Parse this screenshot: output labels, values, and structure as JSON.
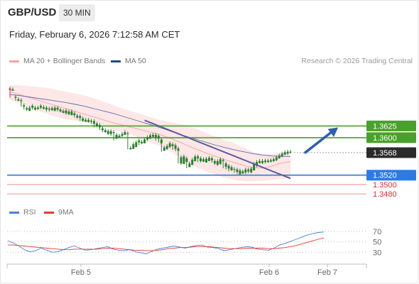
{
  "header": {
    "pair": "GBP/USD",
    "timeframe": "30 MIN",
    "datetime": "Friday, February 6, 2026 7:12:58 AM CET"
  },
  "legend": {
    "ma20_label": "MA 20 + Bollinger Bands",
    "ma50_label": "MA 50",
    "credit": "Research © 2026 Trading Central",
    "rsi_label": "RSI",
    "rsi_ma_label": "9MA"
  },
  "colors": {
    "up": "#2e7d32",
    "down": "#d32f2f",
    "bollinger_fill": "#fde3e3",
    "ma20": "#f4a3a3",
    "ma50": "#5a6ea8",
    "trendline": "#5c5a9e",
    "resistance": "#4aa02c",
    "pivot": "#2c7be5",
    "support": "#f08a8a",
    "arrow": "#2f5fa8",
    "rsi": "#4f7ed6",
    "rsi_ma": "#e53935"
  },
  "chart_data": [
    {
      "type": "candlestick",
      "title": "GBP/USD 30 MIN",
      "ylim": [
        1.3462,
        1.3715
      ],
      "x_ticks": [
        "Feb 5",
        "Feb 6",
        "Feb 7"
      ],
      "price_levels": [
        {
          "label": "1.3625",
          "value": 1.3625,
          "kind": "resistance"
        },
        {
          "label": "1.3600",
          "value": 1.36,
          "kind": "resistance"
        },
        {
          "label": "1.3568",
          "value": 1.3568,
          "kind": "last"
        },
        {
          "label": "1.3520",
          "value": 1.352,
          "kind": "pivot"
        },
        {
          "label": "1.3500",
          "value": 1.35,
          "kind": "support"
        },
        {
          "label": "1.3480",
          "value": 1.348,
          "kind": "support"
        }
      ],
      "candles": [
        [
          1.3705,
          1.3702,
          1.3685
        ],
        [
          1.37,
          1.3703,
          1.37
        ],
        [
          1.3685,
          1.3687,
          1.3679
        ],
        [
          1.3679,
          1.3682,
          1.3678
        ],
        [
          1.3678,
          1.368,
          1.3666
        ],
        [
          1.3666,
          1.3669,
          1.366
        ],
        [
          1.366,
          1.3663,
          1.3657
        ],
        [
          1.3657,
          1.3664,
          1.366
        ],
        [
          1.3664,
          1.3668,
          1.366
        ],
        [
          1.366,
          1.3664,
          1.3658
        ],
        [
          1.3661,
          1.3664,
          1.366
        ],
        [
          1.3664,
          1.3668,
          1.3661
        ],
        [
          1.3662,
          1.3665,
          1.366
        ],
        [
          1.366,
          1.3664,
          1.3656
        ],
        [
          1.366,
          1.3662,
          1.3656
        ],
        [
          1.3659,
          1.3663,
          1.3657
        ],
        [
          1.3657,
          1.3664,
          1.366
        ],
        [
          1.366,
          1.3664,
          1.3656
        ],
        [
          1.3656,
          1.366,
          1.3654
        ],
        [
          1.3653,
          1.3657,
          1.3652
        ],
        [
          1.3652,
          1.3658,
          1.3649
        ],
        [
          1.365,
          1.3656,
          1.3648
        ],
        [
          1.3648,
          1.3656,
          1.3648
        ],
        [
          1.3648,
          1.3652,
          1.3643
        ],
        [
          1.3643,
          1.3647,
          1.364
        ],
        [
          1.3642,
          1.3646,
          1.3636
        ],
        [
          1.3636,
          1.3641,
          1.3634
        ],
        [
          1.3634,
          1.3638,
          1.3634
        ],
        [
          1.3634,
          1.3638,
          1.3632
        ],
        [
          1.3634,
          1.3636,
          1.363
        ],
        [
          1.363,
          1.3635,
          1.3622
        ],
        [
          1.3625,
          1.363,
          1.3622
        ],
        [
          1.3622,
          1.3627,
          1.3616
        ],
        [
          1.3616,
          1.362,
          1.3612
        ],
        [
          1.3612,
          1.3616,
          1.361
        ],
        [
          1.3608,
          1.3614,
          1.3606
        ],
        [
          1.3608,
          1.3614,
          1.3604
        ],
        [
          1.361,
          1.3612,
          1.3594
        ],
        [
          1.3598,
          1.3606,
          1.3597
        ],
        [
          1.36,
          1.3604,
          1.3602
        ],
        [
          1.3604,
          1.3608,
          1.36
        ],
        [
          1.3606,
          1.3612,
          1.3605
        ],
        [
          1.3608,
          1.3609,
          1.3575
        ],
        [
          1.3575,
          1.3578,
          1.3576
        ],
        [
          1.3576,
          1.3586,
          1.3578
        ],
        [
          1.358,
          1.359,
          1.3582
        ],
        [
          1.359,
          1.3594,
          1.3584
        ],
        [
          1.3588,
          1.3591,
          1.3586
        ],
        [
          1.3588,
          1.3596,
          1.359
        ],
        [
          1.3596,
          1.3601,
          1.3593
        ],
        [
          1.3598,
          1.3605,
          1.3597
        ],
        [
          1.3602,
          1.3606,
          1.36
        ],
        [
          1.36,
          1.3606,
          1.3594
        ],
        [
          1.3598,
          1.3604,
          1.359
        ],
        [
          1.3588,
          1.3596,
          1.357
        ],
        [
          1.3572,
          1.3579,
          1.3573
        ],
        [
          1.3576,
          1.3582,
          1.3574
        ],
        [
          1.358,
          1.3588,
          1.3578
        ],
        [
          1.3582,
          1.3586,
          1.3574
        ],
        [
          1.3576,
          1.3584,
          1.3571
        ],
        [
          1.3572,
          1.3577,
          1.3545
        ],
        [
          1.3545,
          1.3558,
          1.3542
        ],
        [
          1.3544,
          1.356,
          1.3546
        ],
        [
          1.3548,
          1.3556,
          1.3535
        ],
        [
          1.3537,
          1.3545,
          1.3538
        ],
        [
          1.3542,
          1.3553,
          1.3542
        ],
        [
          1.355,
          1.356,
          1.3549
        ],
        [
          1.3556,
          1.356,
          1.3548
        ],
        [
          1.355,
          1.3556,
          1.3547
        ],
        [
          1.3549,
          1.3554,
          1.3548
        ],
        [
          1.3547,
          1.3555,
          1.3548
        ],
        [
          1.355,
          1.3557,
          1.355
        ],
        [
          1.3552,
          1.3556,
          1.3547
        ],
        [
          1.3545,
          1.355,
          1.3542
        ],
        [
          1.3542,
          1.355,
          1.354
        ],
        [
          1.3544,
          1.3554,
          1.3542
        ],
        [
          1.355,
          1.3552,
          1.3535
        ],
        [
          1.3538,
          1.3545,
          1.3532
        ],
        [
          1.3534,
          1.354,
          1.3528
        ],
        [
          1.353,
          1.3537,
          1.3531
        ],
        [
          1.3532,
          1.3533,
          1.3525
        ],
        [
          1.3527,
          1.3532,
          1.3522
        ],
        [
          1.3522,
          1.353,
          1.352
        ],
        [
          1.3524,
          1.3528,
          1.3522
        ],
        [
          1.3526,
          1.3532,
          1.3522
        ],
        [
          1.3528,
          1.3532,
          1.3524
        ],
        [
          1.3526,
          1.3534,
          1.3524
        ],
        [
          1.353,
          1.3544,
          1.3532
        ],
        [
          1.354,
          1.3548,
          1.3537
        ],
        [
          1.3546,
          1.355,
          1.3545
        ],
        [
          1.3546,
          1.355,
          1.3544
        ],
        [
          1.3548,
          1.3551,
          1.3545
        ],
        [
          1.3548,
          1.3551,
          1.3546
        ],
        [
          1.3549,
          1.3552,
          1.3547
        ],
        [
          1.355,
          1.3554,
          1.3548
        ],
        [
          1.3552,
          1.3558,
          1.355
        ],
        [
          1.3556,
          1.3562,
          1.3555
        ],
        [
          1.356,
          1.3566,
          1.3558
        ],
        [
          1.3564,
          1.3569,
          1.3562
        ],
        [
          1.3566,
          1.357,
          1.3563
        ],
        [
          1.3568,
          1.357,
          1.3566
        ]
      ],
      "ma20": [
        1.3698,
        1.3692,
        1.3686,
        1.368,
        1.3674,
        1.3668,
        1.3662,
        1.3656,
        1.365,
        1.3644,
        1.3638,
        1.3632,
        1.3627,
        1.3622,
        1.3617,
        1.3612,
        1.3607,
        1.36,
        1.3592,
        1.3583,
        1.3575,
        1.3567,
        1.356,
        1.3553,
        1.3547,
        1.3541,
        1.3536,
        1.3535,
        1.3539,
        1.3546,
        1.3549
      ],
      "bollinger_upper": [
        1.3712,
        1.3712,
        1.371,
        1.3708,
        1.3706,
        1.3702,
        1.3698,
        1.3694,
        1.369,
        1.3684,
        1.3677,
        1.367,
        1.3662,
        1.3656,
        1.365,
        1.3644,
        1.3638,
        1.3634,
        1.363,
        1.3626,
        1.3618,
        1.361,
        1.3602,
        1.3595,
        1.3588,
        1.3579,
        1.357,
        1.3565,
        1.3566,
        1.3568,
        1.3568
      ],
      "bollinger_lower": [
        1.368,
        1.3674,
        1.3666,
        1.3658,
        1.365,
        1.3644,
        1.364,
        1.3636,
        1.3632,
        1.3628,
        1.3623,
        1.3618,
        1.3612,
        1.3606,
        1.3598,
        1.359,
        1.3582,
        1.3572,
        1.356,
        1.3547,
        1.3536,
        1.3528,
        1.3521,
        1.3515,
        1.351,
        1.3507,
        1.3507,
        1.3508,
        1.351,
        1.3512,
        1.3514
      ],
      "ma50": [
        1.3692,
        1.369,
        1.3687,
        1.3684,
        1.3681,
        1.3678,
        1.3675,
        1.3671,
        1.3667,
        1.3662,
        1.3657,
        1.3652,
        1.3646,
        1.364,
        1.3634,
        1.3628,
        1.3622,
        1.3615,
        1.3608,
        1.3602,
        1.3596,
        1.359,
        1.3584,
        1.3579,
        1.3574,
        1.357,
        1.3566,
        1.3563,
        1.3561,
        1.356,
        1.356
      ],
      "trendline": {
        "start": {
          "candle": 48,
          "price": 1.3637
        },
        "end": {
          "candle": 100,
          "price": 1.3513
        }
      },
      "forecast_arrow": {
        "start": {
          "candle": 105,
          "price": 1.3567
        },
        "end": {
          "candle": 117,
          "price": 1.3622
        }
      }
    },
    {
      "type": "line",
      "title": "RSI",
      "ylim": [
        10,
        85
      ],
      "y_ticks": [
        70,
        50,
        30
      ],
      "series": [
        {
          "name": "RSI",
          "values": [
            52,
            48,
            42,
            35,
            31,
            33,
            38,
            34,
            30,
            31,
            35,
            39,
            42,
            38,
            34,
            35,
            37,
            39,
            41,
            36,
            34,
            33,
            35,
            31,
            29,
            27,
            32,
            36,
            38,
            40,
            42,
            40,
            38,
            41,
            43,
            44,
            40,
            39,
            37,
            33,
            35,
            37,
            39,
            41,
            40,
            36,
            35,
            34,
            38,
            44,
            47,
            51,
            55,
            59,
            63,
            66,
            68,
            69
          ]
        },
        {
          "name": "9MA",
          "values": [
            44,
            44,
            43,
            42,
            41,
            40,
            39,
            38,
            37,
            36,
            35,
            35,
            36,
            36,
            36,
            36,
            36,
            37,
            38,
            38,
            37,
            36,
            35,
            34,
            34,
            33,
            33,
            34,
            35,
            37,
            38,
            39,
            39,
            40,
            41,
            41,
            41,
            40,
            39,
            38,
            37,
            37,
            37,
            38,
            38,
            38,
            38,
            37,
            37,
            38,
            39,
            41,
            43,
            46,
            49,
            52,
            55,
            58
          ]
        }
      ]
    }
  ]
}
